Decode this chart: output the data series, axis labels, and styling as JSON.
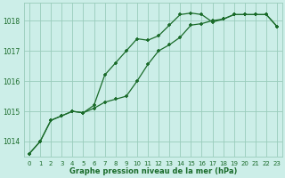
{
  "title": "Graphe pression niveau de la mer (hPa)",
  "bg_color": "#cceee8",
  "grid_color": "#99ccbb",
  "line_color": "#1a6b2a",
  "line1": {
    "x": [
      0,
      1,
      2,
      3,
      4,
      5,
      6,
      7,
      8,
      9,
      10,
      11,
      12,
      13,
      14,
      15,
      16,
      17,
      18,
      19,
      20,
      21,
      22,
      23
    ],
    "y": [
      1013.6,
      1014.0,
      1014.7,
      1014.85,
      1015.0,
      1014.95,
      1015.2,
      1016.2,
      1016.6,
      1017.0,
      1017.4,
      1017.35,
      1017.5,
      1017.85,
      1018.2,
      1018.25,
      1018.2,
      1017.95,
      1018.05,
      1018.2,
      1018.2,
      1018.2,
      1018.2,
      1017.8
    ]
  },
  "line2": {
    "x": [
      0,
      1,
      2,
      3,
      4,
      5,
      6,
      7,
      8,
      9,
      10,
      11,
      12,
      13,
      14,
      15,
      16,
      17,
      18,
      19,
      20,
      21,
      22,
      23
    ],
    "y": [
      1013.6,
      1014.0,
      1014.7,
      1014.85,
      1015.0,
      1014.95,
      1015.1,
      1015.3,
      1015.4,
      1015.5,
      1016.0,
      1016.55,
      1017.0,
      1017.2,
      1017.45,
      1017.85,
      1017.9,
      1018.0,
      1018.05,
      1018.2,
      1018.2,
      1018.2,
      1018.2,
      1017.8
    ]
  },
  "ylim": [
    1013.5,
    1018.6
  ],
  "yticks": [
    1014,
    1015,
    1016,
    1017,
    1018
  ],
  "xlim": [
    -0.5,
    23.5
  ],
  "xticks": [
    0,
    1,
    2,
    3,
    4,
    5,
    6,
    7,
    8,
    9,
    10,
    11,
    12,
    13,
    14,
    15,
    16,
    17,
    18,
    19,
    20,
    21,
    22,
    23
  ]
}
